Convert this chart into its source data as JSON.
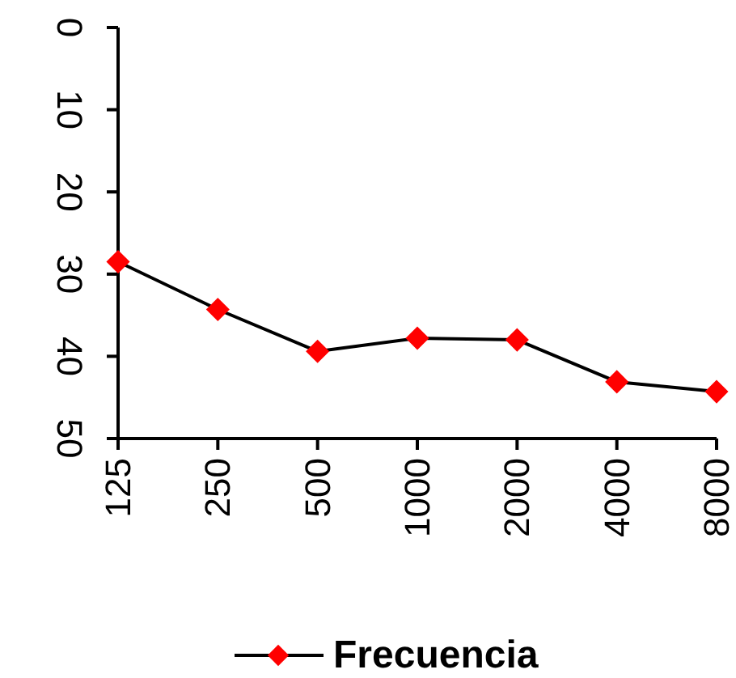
{
  "chart_data": {
    "type": "line",
    "categories": [
      "125",
      "250",
      "500",
      "1000",
      "2000",
      "4000",
      "8000"
    ],
    "series": [
      {
        "name": "Frecuencia",
        "color": "#ff0000",
        "values": [
          28.5,
          34.3,
          39.4,
          37.8,
          38,
          43.1,
          44.3
        ]
      }
    ],
    "ylim": [
      50,
      0
    ],
    "yticks": [
      0,
      10,
      20,
      30,
      40,
      50
    ],
    "grid": false,
    "legend": "bottom",
    "marker": "diamond",
    "line_style": "solid"
  }
}
